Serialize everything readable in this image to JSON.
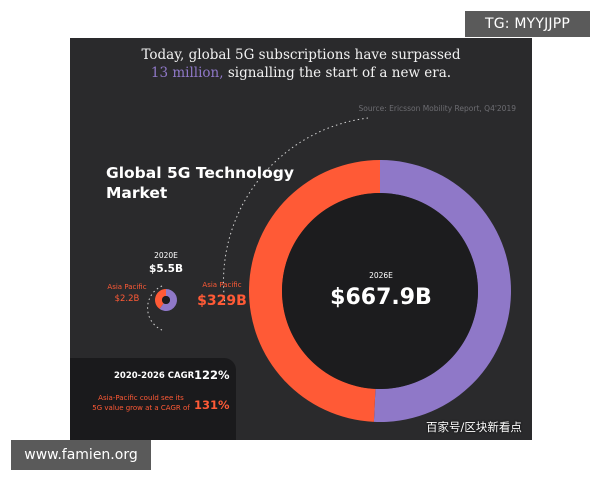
{
  "watermarks": {
    "top_right": "TG: MYYJJPP",
    "bottom_left": "www.famien.org",
    "bottom_right": "百家号/区块新看点"
  },
  "headline": {
    "line1": "Today, global 5G subscriptions have surpassed",
    "line2_highlight": "13 million,",
    "line2_rest": " signalling the start of a new era."
  },
  "source": "Source: Ericsson Mobility Report, Q4'2019",
  "colors": {
    "background": "#2a2a2c",
    "asia_pacific": "#ff5a36",
    "rest_of_world": "#8f78c8",
    "highlight": "#8f78c8",
    "cagr_panel": "#1a1a1c"
  },
  "chart_data": {
    "type": "pie",
    "title": "Global 5G Technology Market",
    "donuts": [
      {
        "year_label": "2020E",
        "total_label": "$5.5B",
        "total": 5.5,
        "asia_pacific_label": "Asia Pacific",
        "asia_pacific_value_label": "$2.2B",
        "segments": [
          {
            "name": "Asia Pacific",
            "value": 2.2
          },
          {
            "name": "",
            "value": 3.3
          }
        ]
      },
      {
        "year_label": "2026E",
        "total_label": "$667.9B",
        "total": 667.9,
        "asia_pacific_label": "Asia Pacific",
        "asia_pacific_value_label": "$329B",
        "segments": [
          {
            "name": "Asia Pacific",
            "value": 329
          },
          {
            "name": "",
            "value": 338.9
          }
        ]
      }
    ]
  },
  "cagr": {
    "global_label": "2020-2026 CAGR",
    "global_value": "122%",
    "apac_label_line1": "Asia-Pacific could see its",
    "apac_label_line2": "5G value grow at a CAGR of",
    "apac_value": "131%"
  }
}
